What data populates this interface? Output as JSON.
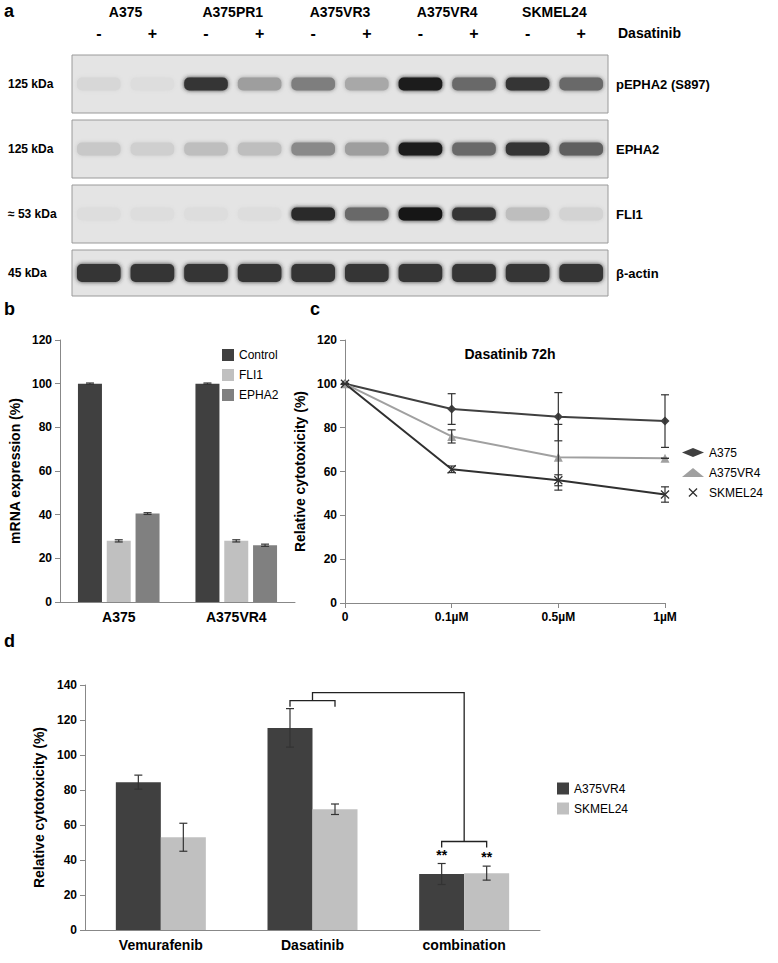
{
  "blot": {
    "panel": "a",
    "treatment_label": "Dasatinib",
    "groups": [
      "A375",
      "A375PR1",
      "A375VR3",
      "A375VR4",
      "SKMEL24"
    ],
    "treatment": [
      "-",
      "+"
    ],
    "rows": [
      {
        "name": "pEPHA2 (S897)",
        "size": "125 kDa",
        "intensity": [
          0.08,
          0.05,
          0.85,
          0.35,
          0.5,
          0.3,
          0.95,
          0.6,
          0.85,
          0.6
        ]
      },
      {
        "name": "EPHA2",
        "size": "125 kDa",
        "intensity": [
          0.15,
          0.12,
          0.2,
          0.2,
          0.45,
          0.35,
          0.95,
          0.6,
          0.85,
          0.65
        ]
      },
      {
        "name": "FLI1",
        "size": "≈ 53 kDa",
        "intensity": [
          0.05,
          0.05,
          0.05,
          0.05,
          0.9,
          0.6,
          1.0,
          0.85,
          0.2,
          0.1
        ]
      },
      {
        "name": "β-actin",
        "size": "45 kDa",
        "intensity": [
          0.85,
          0.85,
          0.85,
          0.85,
          0.85,
          0.85,
          0.85,
          0.85,
          0.85,
          0.85
        ]
      }
    ]
  },
  "chart_data": [
    {
      "panel": "b",
      "type": "bar",
      "categories": [
        "A375",
        "A375VR4"
      ],
      "y_label": "mRNA expression (%)",
      "ylim": [
        0,
        120
      ],
      "yticks": [
        0,
        20,
        40,
        60,
        80,
        100,
        120
      ],
      "grid": false,
      "legend": "upper right",
      "series": [
        {
          "name": "Control",
          "color": "#404040",
          "values": [
            100,
            100
          ],
          "errors": [
            0.3,
            0.3
          ]
        },
        {
          "name": "FLI1",
          "color": "#c0c0c0",
          "values": [
            28,
            28
          ],
          "errors": [
            0.5,
            0.5
          ]
        },
        {
          "name": "EPHA2",
          "color": "#808080",
          "values": [
            40.5,
            26
          ],
          "errors": [
            0.4,
            0.5
          ]
        }
      ]
    },
    {
      "panel": "c",
      "type": "line",
      "title": "Dasatinib 72h",
      "categories": [
        "0",
        "0.1µM",
        "0.5µM",
        "1µM"
      ],
      "y_label": "Relative cytotoxicity (%)",
      "ylim": [
        0,
        120
      ],
      "yticks": [
        0,
        20,
        40,
        60,
        80,
        100,
        120
      ],
      "grid": false,
      "legend": "right",
      "series": [
        {
          "name": "A375",
          "color": "#404040",
          "marker": "diamond",
          "line_style": "solid",
          "values": [
            100,
            88.5,
            85,
            83
          ],
          "errors": [
            0,
            7,
            11,
            12
          ]
        },
        {
          "name": "A375VR4",
          "color": "#a0a0a0",
          "marker": "triangle",
          "line_style": "solid",
          "values": [
            100,
            76,
            66.5,
            66
          ],
          "errors": [
            0,
            3,
            15,
            0
          ]
        },
        {
          "name": "SKMEL24",
          "color": "#303030",
          "marker": "x",
          "line_style": "solid",
          "values": [
            100,
            61,
            56,
            49.5
          ],
          "errors": [
            0,
            1.5,
            2.5,
            3.5
          ]
        }
      ]
    },
    {
      "panel": "d",
      "type": "bar",
      "categories": [
        "Vemurafenib",
        "Dasatinib",
        "combination"
      ],
      "y_label": "Relative cytotoxicity (%)",
      "ylim": [
        0,
        140
      ],
      "yticks": [
        0,
        20,
        40,
        60,
        80,
        100,
        120,
        140
      ],
      "grid": false,
      "legend": "right",
      "series": [
        {
          "name": "A375VR4",
          "color": "#404040",
          "values": [
            84.5,
            115.5,
            32
          ],
          "errors": [
            4,
            11,
            6
          ]
        },
        {
          "name": "SKMEL24",
          "color": "#c0c0c0",
          "values": [
            53,
            69,
            32.5
          ],
          "errors": [
            8,
            3,
            4
          ]
        }
      ],
      "annotations": [
        {
          "text": "**",
          "category": "combination",
          "series": "A375VR4",
          "vs": "Dasatinib"
        },
        {
          "text": "**",
          "category": "combination",
          "series": "SKMEL24",
          "vs": "Dasatinib"
        }
      ]
    }
  ]
}
